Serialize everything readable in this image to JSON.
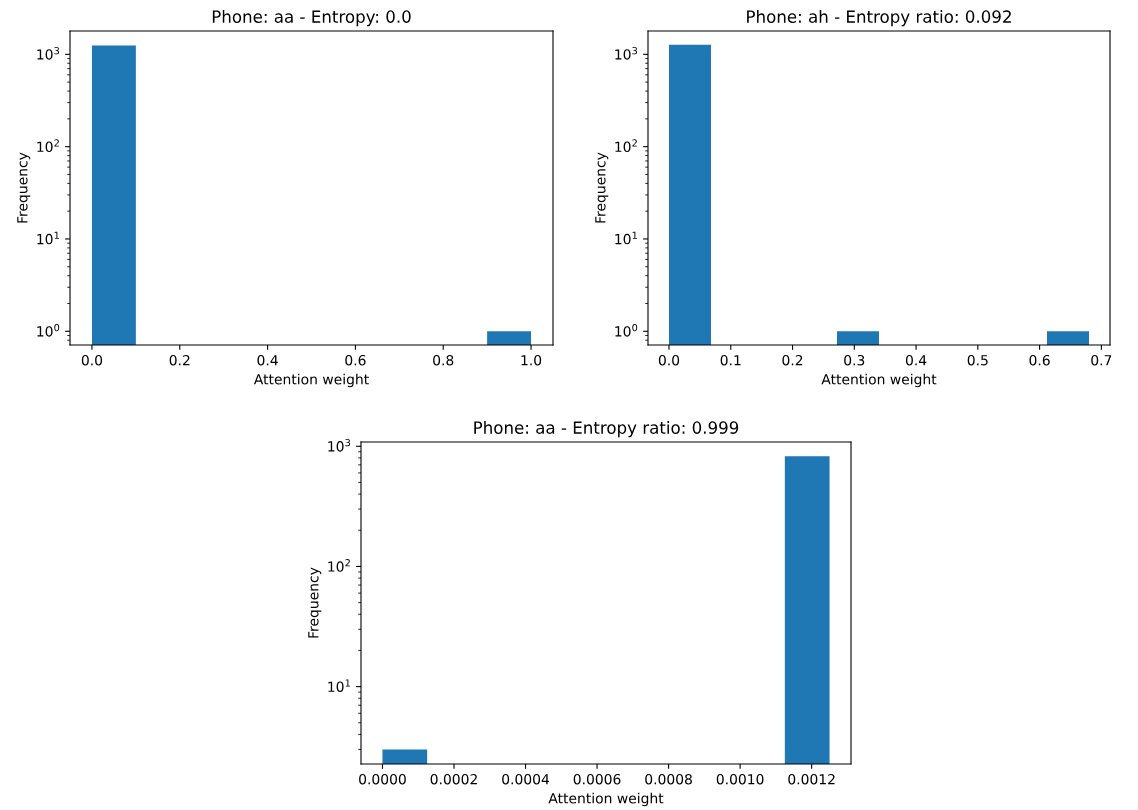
{
  "chart_data": [
    {
      "type": "histogram",
      "title": "Phone: aa - Entropy: 0.0",
      "xlabel": "Attention weight",
      "ylabel": "Frequency",
      "color": "#1f77b4",
      "log": true,
      "grid": false,
      "bins": [
        0.0,
        0.1,
        0.2,
        0.3,
        0.4,
        0.5,
        0.6,
        0.7,
        0.8,
        0.9,
        1.0
      ],
      "values": [
        1250,
        null,
        null,
        null,
        null,
        null,
        null,
        null,
        null,
        1
      ],
      "xlim": [
        -0.05,
        1.05
      ],
      "xticks": [
        {
          "value": 0,
          "label": "0.0"
        },
        0.2,
        0.4,
        0.6,
        0.8,
        {
          "value": 1,
          "label": "1.0"
        }
      ],
      "ylim": [
        0.71,
        1790
      ],
      "yticks": [
        {
          "value": 1,
          "label": "10$^{0}$"
        },
        {
          "value": 10,
          "label": "10$^{1}$"
        },
        {
          "value": 100,
          "label": "10$^{2}$"
        },
        {
          "value": 1000,
          "label": "10$^{3}$"
        }
      ]
    },
    {
      "type": "histogram",
      "title": "Phone: ah - Entropy ratio: 0.092",
      "xlabel": "Attention weight",
      "ylabel": "Frequency",
      "color": "#1f77b4",
      "log": true,
      "grid": false,
      "bins": [
        0.0,
        0.068,
        0.136,
        0.204,
        0.272,
        0.34,
        0.408,
        0.476,
        0.544,
        0.612,
        0.68
      ],
      "values": [
        1270,
        null,
        null,
        null,
        1,
        null,
        null,
        null,
        null,
        1
      ],
      "xlim": [
        -0.034,
        0.714
      ],
      "xticks": [
        {
          "value": 0,
          "label": "0.0"
        },
        0.1,
        0.2,
        0.3,
        0.4,
        0.5,
        0.6,
        0.7
      ],
      "ylim": [
        0.71,
        1790
      ],
      "yticks": [
        {
          "value": 1,
          "label": "10$^{0}$"
        },
        {
          "value": 10,
          "label": "10$^{1}$"
        },
        {
          "value": 100,
          "label": "10$^{2}$"
        },
        {
          "value": 1000,
          "label": "10$^{3}$"
        }
      ]
    },
    {
      "type": "histogram",
      "title": "Phone: aa - Entropy ratio: 0.999",
      "xlabel": "Attention weight",
      "ylabel": "Frequency",
      "color": "#1f77b4",
      "log": true,
      "grid": false,
      "bins": [
        0.0,
        0.000125,
        0.00025,
        0.000375,
        0.0005,
        0.000625,
        0.00075,
        0.000875,
        0.001,
        0.001125,
        0.00125
      ],
      "values": [
        3,
        null,
        null,
        null,
        null,
        null,
        null,
        null,
        null,
        826
      ],
      "xlim": [
        -6e-05,
        0.00131
      ],
      "xticks": [
        {
          "value": 0,
          "label": "0.0000"
        },
        {
          "value": 0.0002,
          "label": "0.0002"
        },
        {
          "value": 0.0004,
          "label": "0.0004"
        },
        {
          "value": 0.0006,
          "label": "0.0006"
        },
        {
          "value": 0.0008,
          "label": "0.0008"
        },
        {
          "value": 0.001,
          "label": "0.0010"
        },
        {
          "value": 0.0012,
          "label": "0.0012"
        }
      ],
      "ylim": [
        2.27,
        1085
      ],
      "yticks": [
        {
          "value": 10,
          "label": "10$^{1}$"
        },
        {
          "value": 100,
          "label": "10$^{2}$"
        },
        {
          "value": 1000,
          "label": "10$^{3}$"
        }
      ]
    }
  ]
}
